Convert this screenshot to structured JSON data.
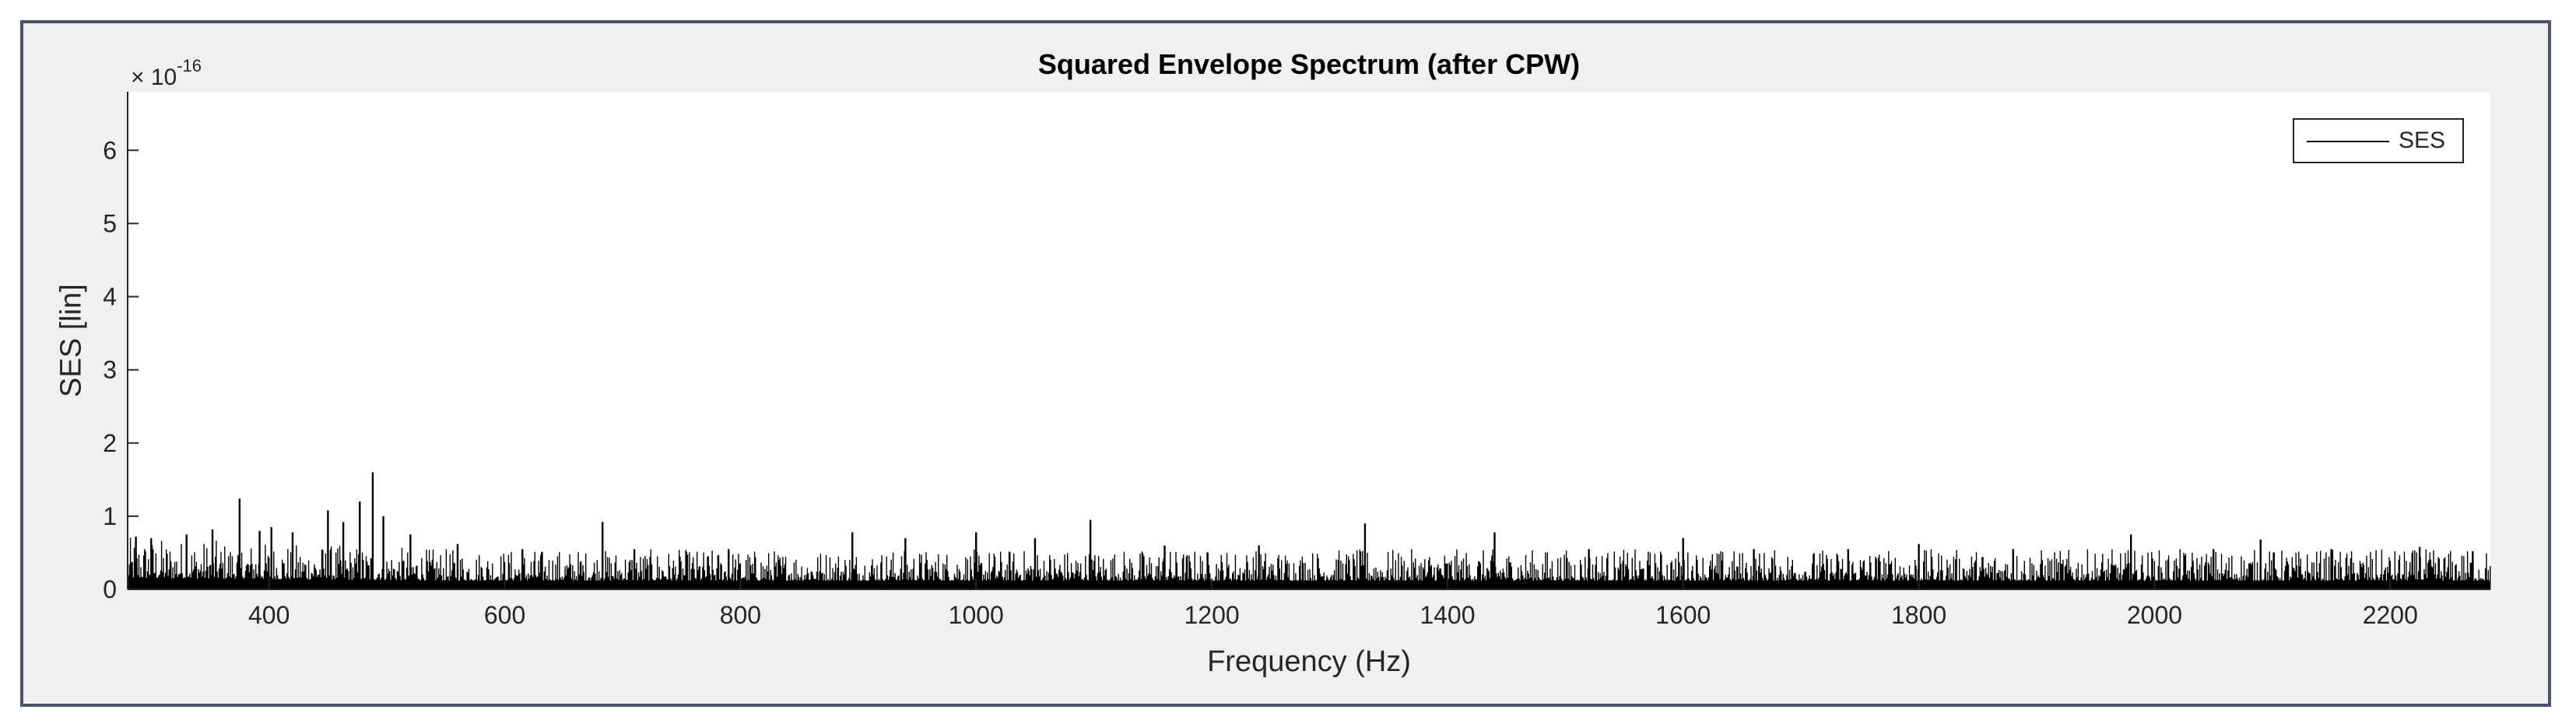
{
  "chart_data": {
    "type": "line",
    "title": "Squared Envelope Spectrum (after CPW)",
    "xlabel": "Frequency (Hz)",
    "ylabel": "SES [lin]",
    "y_exponent_base": "× 10",
    "y_exponent_power": "-16",
    "xlim": [
      280,
      2285
    ],
    "ylim": [
      0,
      6.8
    ],
    "y_scale": 1e-16,
    "xticks": [
      400,
      600,
      800,
      1000,
      1200,
      1400,
      1600,
      1800,
      2000,
      2200
    ],
    "yticks": [
      0,
      1,
      2,
      3,
      4,
      5,
      6
    ],
    "grid": false,
    "legend_position": "top-right",
    "series": [
      {
        "name": "SES",
        "color": "#000000",
        "baseline_level": 0.12,
        "noise_band": [
          0.12,
          0.55
        ],
        "peaks": [
          {
            "x": 287,
            "y": 0.72
          },
          {
            "x": 300,
            "y": 0.7
          },
          {
            "x": 330,
            "y": 0.75
          },
          {
            "x": 352,
            "y": 0.82
          },
          {
            "x": 375,
            "y": 1.24
          },
          {
            "x": 392,
            "y": 0.8
          },
          {
            "x": 402,
            "y": 0.85
          },
          {
            "x": 420,
            "y": 0.78
          },
          {
            "x": 450,
            "y": 1.08
          },
          {
            "x": 463,
            "y": 0.92
          },
          {
            "x": 477,
            "y": 1.2
          },
          {
            "x": 488,
            "y": 1.6
          },
          {
            "x": 497,
            "y": 1.0
          },
          {
            "x": 520,
            "y": 0.75
          },
          {
            "x": 560,
            "y": 0.62
          },
          {
            "x": 615,
            "y": 0.55
          },
          {
            "x": 683,
            "y": 0.92
          },
          {
            "x": 710,
            "y": 0.55
          },
          {
            "x": 790,
            "y": 0.55
          },
          {
            "x": 895,
            "y": 0.78
          },
          {
            "x": 940,
            "y": 0.7
          },
          {
            "x": 1000,
            "y": 0.78
          },
          {
            "x": 1050,
            "y": 0.7
          },
          {
            "x": 1097,
            "y": 0.95
          },
          {
            "x": 1160,
            "y": 0.6
          },
          {
            "x": 1240,
            "y": 0.6
          },
          {
            "x": 1330,
            "y": 0.9
          },
          {
            "x": 1440,
            "y": 0.78
          },
          {
            "x": 1520,
            "y": 0.55
          },
          {
            "x": 1600,
            "y": 0.7
          },
          {
            "x": 1660,
            "y": 0.55
          },
          {
            "x": 1740,
            "y": 0.55
          },
          {
            "x": 1800,
            "y": 0.62
          },
          {
            "x": 1880,
            "y": 0.55
          },
          {
            "x": 1980,
            "y": 0.75
          },
          {
            "x": 2050,
            "y": 0.55
          },
          {
            "x": 2090,
            "y": 0.68
          },
          {
            "x": 2150,
            "y": 0.55
          },
          {
            "x": 2225,
            "y": 0.58
          },
          {
            "x": 2270,
            "y": 0.52
          }
        ]
      }
    ]
  }
}
